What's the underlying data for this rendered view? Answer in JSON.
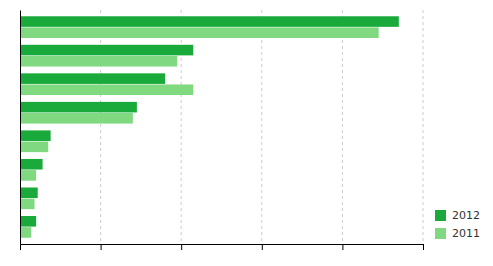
{
  "chart_data": {
    "type": "bar",
    "orientation": "horizontal",
    "categories": [
      null,
      null,
      null,
      null,
      null,
      null,
      null,
      null
    ],
    "series": [
      {
        "name": "2012",
        "color": "#1aaa3c",
        "values": [
          470,
          215,
          180,
          145,
          38,
          28,
          22,
          20
        ]
      },
      {
        "name": "2011",
        "color": "#80d880",
        "values": [
          445,
          195,
          215,
          140,
          35,
          20,
          18,
          14
        ]
      }
    ],
    "xlim": [
      0,
      500
    ],
    "xticks": [
      100,
      200,
      300,
      400,
      500
    ],
    "grid": true,
    "legend": "lower right",
    "tick_labels": false
  }
}
